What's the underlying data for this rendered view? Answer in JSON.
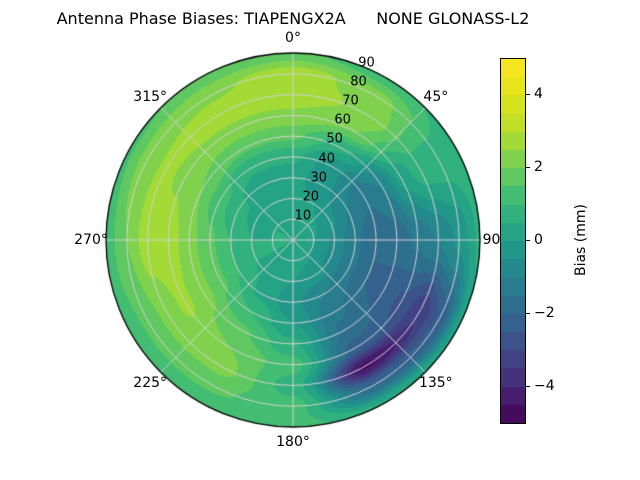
{
  "title": "Antenna Phase Biases: TIAPENGX2A      NONE GLONASS-L2",
  "chart_data": {
    "type": "heatmap",
    "projection": "polar",
    "title": "Antenna Phase Biases: TIAPENGX2A      NONE GLONASS-L2",
    "azimuth_deg": [
      0,
      30,
      60,
      90,
      120,
      150,
      180,
      210,
      240,
      270,
      300,
      330
    ],
    "radius": [
      0,
      10,
      20,
      30,
      40,
      50,
      60,
      70,
      80,
      90
    ],
    "values_mm": [
      [
        0.5,
        0.4,
        0.2,
        0.2,
        0.6,
        1.6,
        2.4,
        2.8,
        2.8,
        1.6
      ],
      [
        0.5,
        0.3,
        0.0,
        -0.4,
        -0.4,
        0.6,
        2.0,
        2.4,
        2.2,
        1.2
      ],
      [
        0.5,
        0.1,
        -0.4,
        -1.0,
        -1.4,
        -1.0,
        0.2,
        0.8,
        0.8,
        0.8
      ],
      [
        0.5,
        0.0,
        -0.6,
        -1.4,
        -2.0,
        -1.8,
        -1.4,
        -1.0,
        -0.4,
        0.6
      ],
      [
        0.5,
        0.0,
        -0.6,
        -1.4,
        -2.0,
        -2.2,
        -2.6,
        -3.4,
        -2.4,
        0.2
      ],
      [
        0.5,
        0.1,
        -0.3,
        -1.0,
        -1.4,
        -1.6,
        -2.2,
        -4.6,
        -2.0,
        0.6
      ],
      [
        0.5,
        0.3,
        0.0,
        -0.4,
        0.0,
        0.6,
        1.2,
        0.8,
        1.2,
        1.2
      ],
      [
        0.5,
        0.4,
        0.3,
        0.4,
        1.0,
        1.6,
        2.0,
        2.2,
        1.6,
        1.2
      ],
      [
        0.5,
        0.5,
        0.5,
        1.0,
        1.6,
        2.2,
        2.6,
        2.2,
        1.6,
        1.2
      ],
      [
        0.5,
        0.5,
        0.5,
        1.0,
        1.6,
        2.2,
        2.8,
        2.8,
        2.0,
        1.2
      ],
      [
        0.5,
        0.5,
        0.4,
        0.6,
        1.2,
        2.0,
        2.4,
        2.6,
        2.2,
        1.4
      ],
      [
        0.5,
        0.4,
        0.3,
        0.2,
        0.6,
        1.6,
        2.4,
        2.8,
        2.4,
        1.6
      ]
    ],
    "value_range": [
      -5,
      5
    ],
    "level_step": 0.5,
    "grid": true,
    "angular_ticks": [
      {
        "angle": 0,
        "label": "0°"
      },
      {
        "angle": 45,
        "label": "45°"
      },
      {
        "angle": 90,
        "label": "90°"
      },
      {
        "angle": 135,
        "label": "135°"
      },
      {
        "angle": 180,
        "label": "180°"
      },
      {
        "angle": 225,
        "label": "225°"
      },
      {
        "angle": 270,
        "label": "270°"
      },
      {
        "angle": 315,
        "label": "315°"
      }
    ],
    "radial_ticks": [
      10,
      20,
      30,
      40,
      50,
      60,
      70,
      80,
      90
    ],
    "radial_label_angle_deg": 22.5,
    "colorbar": {
      "label": "Bias (mm)",
      "ticks": [
        "−4",
        "−2",
        "0",
        "2",
        "4"
      ],
      "tick_values": [
        -4,
        -2,
        0,
        2,
        4
      ],
      "position": "right"
    },
    "colormap": {
      "name": "viridis",
      "stops": [
        "#440154",
        "#482878",
        "#3e4a89",
        "#31688e",
        "#26828e",
        "#1f9e89",
        "#35b779",
        "#6ece58",
        "#b5de2b",
        "#dfe318",
        "#fde725"
      ]
    },
    "gridline_color": "#d2d2d2",
    "outline_color": "#000000"
  }
}
